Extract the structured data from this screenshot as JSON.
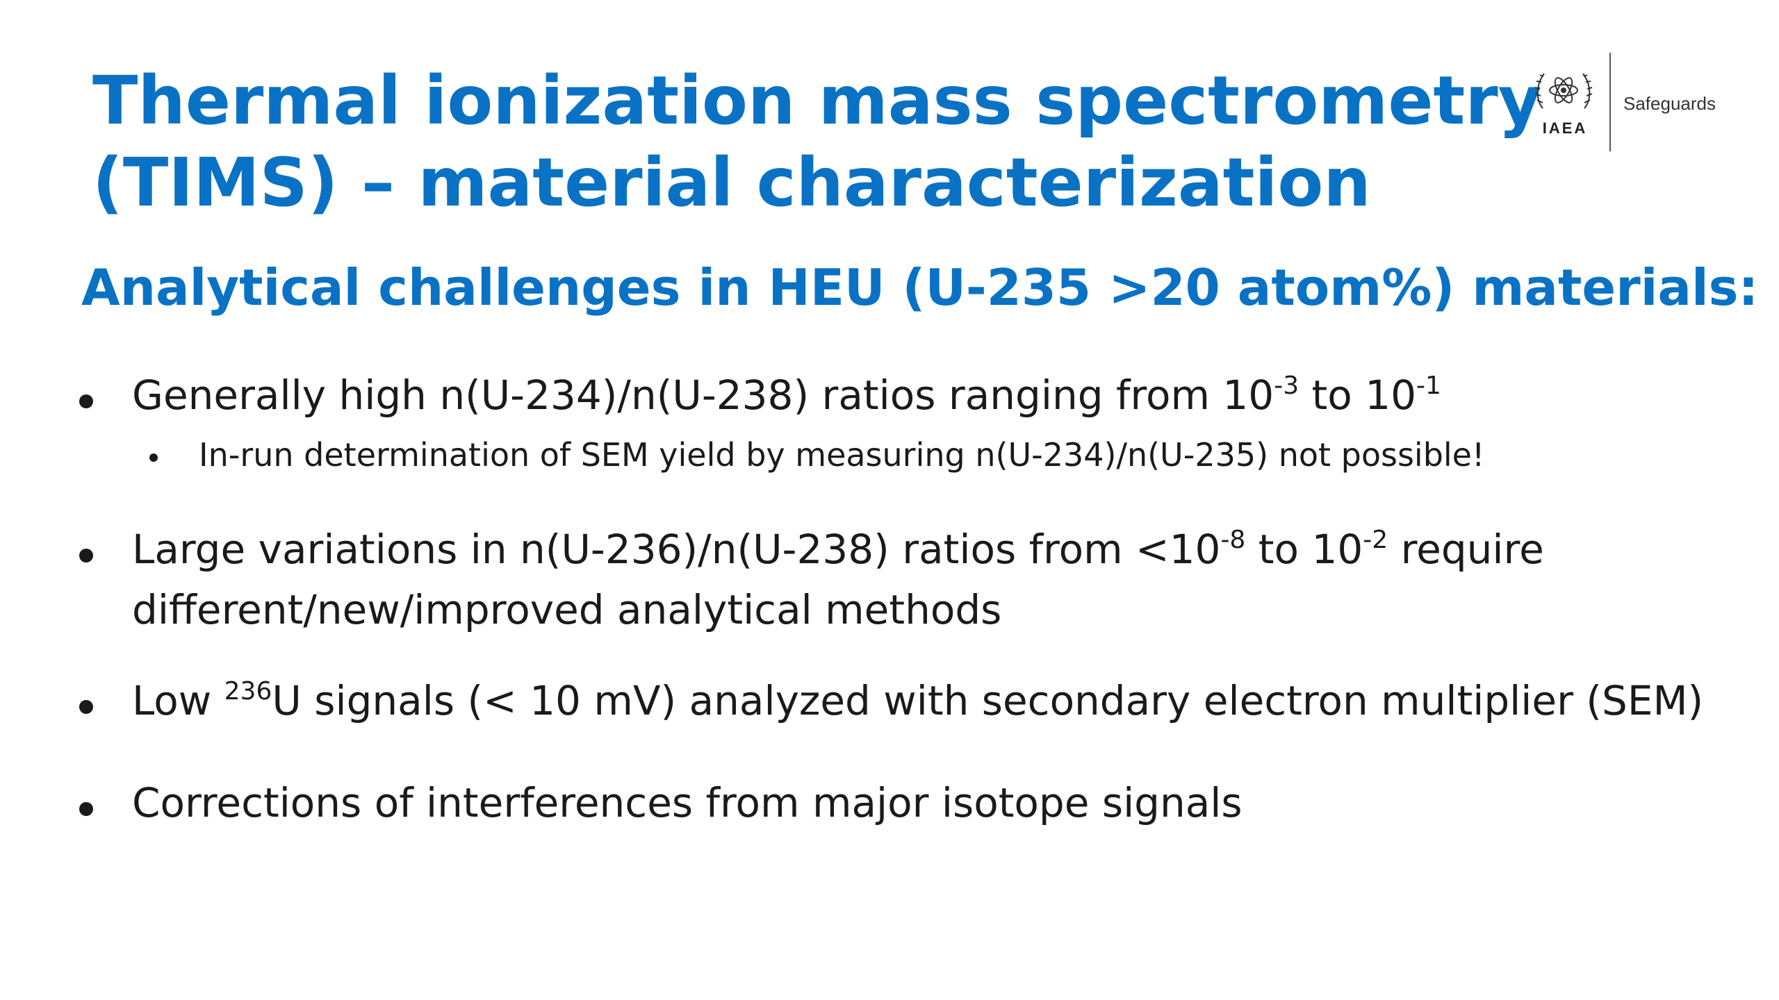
{
  "slide": {
    "title_line1": "Thermal ionization mass spectrometry",
    "title_line2": "(TIMS) – material characterization",
    "subtitle": "Analytical challenges in HEU (U-235 >20 atom%) materials:",
    "accent_color": "#0a72c4"
  },
  "logo": {
    "icon": "iaea-emblem-icon",
    "acronym": "IAEA",
    "label": "Safeguards"
  },
  "bullets": [
    {
      "a": "Generally high n(U-234)/n(U-238) ratios ranging from 10",
      "sup1": "-3",
      "b": " to 10",
      "sup2": "-1"
    },
    {
      "text": "In-run determination of SEM yield by measuring n(U-234)/n(U-235) not possible!"
    },
    {
      "a": "Large variations in n(U-236)/n(U-238) ratios from <10",
      "sup1": "-8",
      "b": " to 10",
      "sup2": "-2",
      "c": " require",
      "line2": "different/new/improved analytical methods"
    },
    {
      "a": "Low ",
      "sup1": "236",
      "b": "U signals (< 10 mV) analyzed with secondary electron multiplier (SEM)"
    },
    {
      "text": "Corrections of interferences from major isotope signals"
    }
  ]
}
